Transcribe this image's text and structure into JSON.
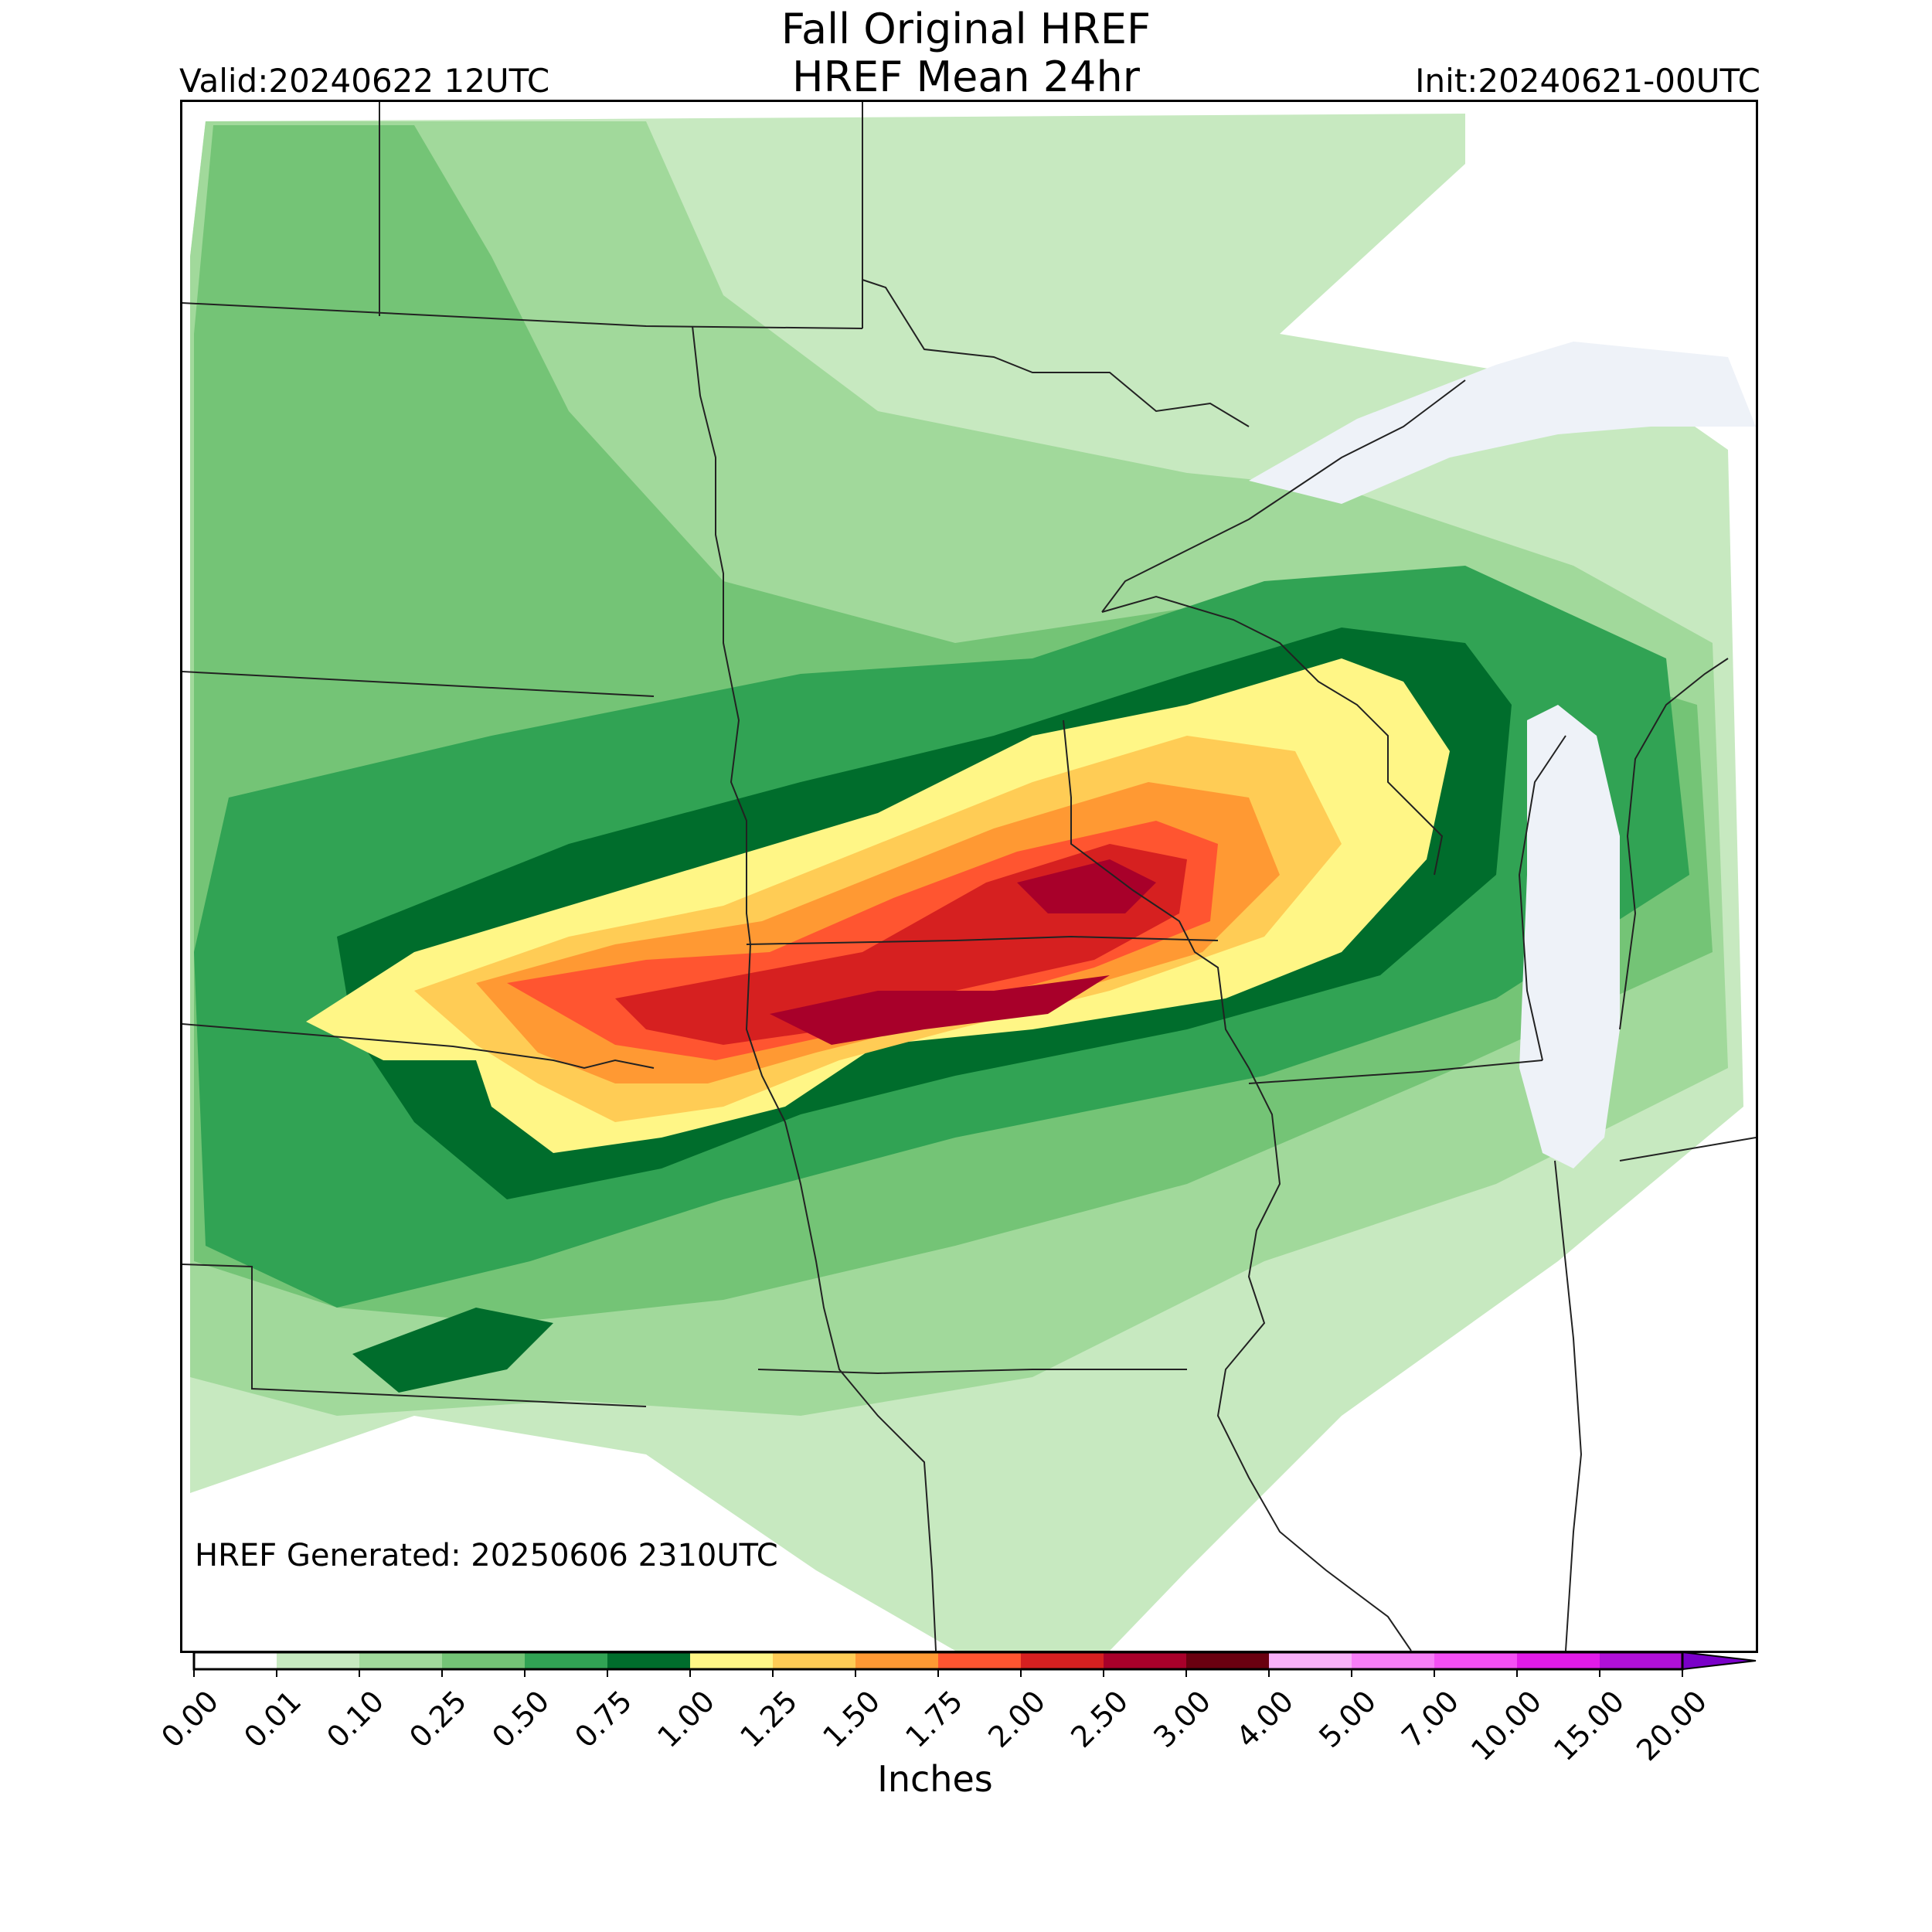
{
  "header": {
    "title_line1": "Fall Original HREF",
    "title_line2": "HREF Mean 24hr",
    "valid": "Valid:20240622 12UTC",
    "init": "Init:20240621-00UTC"
  },
  "map": {
    "generated": "HREF Generated: 20250606 2310UTC",
    "variable": "24hr mean precipitation",
    "lake_color": "#eef2f8",
    "border_color": "#222222"
  },
  "colorbar": {
    "label": "Inches",
    "levels": [
      "0.00",
      "0.01",
      "0.10",
      "0.25",
      "0.50",
      "0.75",
      "1.00",
      "1.25",
      "1.50",
      "1.75",
      "2.00",
      "2.50",
      "3.00",
      "4.00",
      "5.00",
      "7.00",
      "10.00",
      "15.00",
      "20.00"
    ],
    "colors": [
      "#ffffff",
      "#c7e9c0",
      "#a1d99b",
      "#74c476",
      "#31a354",
      "#006d2c",
      "#fff686",
      "#ffcc55",
      "#ff9933",
      "#ff5530",
      "#d62020",
      "#a8002a",
      "#6a0010",
      "#f8b0f8",
      "#f77ef7",
      "#f44ff4",
      "#e11be8",
      "#b010d8",
      "#7a00c8"
    ],
    "extend": "max"
  }
}
